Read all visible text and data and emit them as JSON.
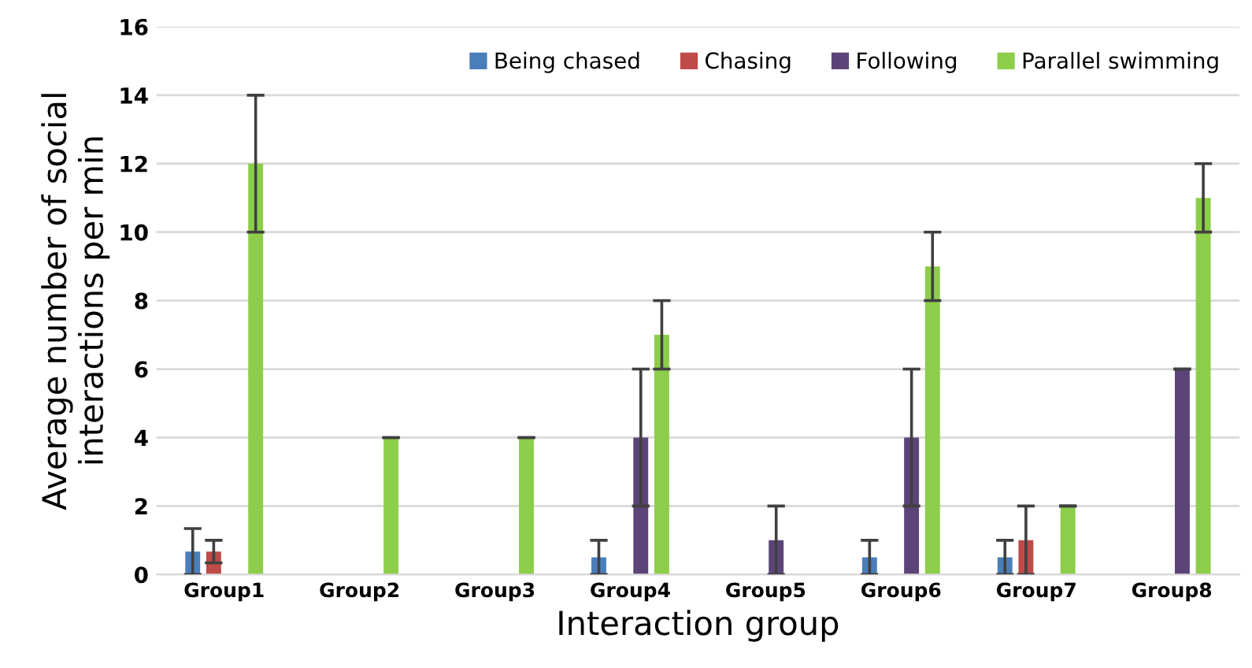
{
  "chart_data": {
    "type": "bar",
    "xlabel": "Interaction group",
    "ylabel": "Average number of social\ninteractions per min",
    "categories": [
      "Group1",
      "Group2",
      "Group3",
      "Group4",
      "Group5",
      "Group6",
      "Group7",
      "Group8"
    ],
    "series": [
      {
        "name": "Being chased",
        "color": "#4a7ebb",
        "values": [
          0.67,
          0,
          0,
          0.5,
          0,
          0.5,
          0.5,
          0
        ],
        "errors": [
          0.67,
          null,
          null,
          0.5,
          null,
          0.5,
          0.5,
          null
        ]
      },
      {
        "name": "Chasing",
        "color": "#be4b48",
        "values": [
          0.67,
          0,
          0,
          0,
          0,
          0,
          1,
          0
        ],
        "errors": [
          0.33,
          null,
          null,
          null,
          null,
          null,
          1,
          null
        ]
      },
      {
        "name": "Following",
        "color": "#5c4478",
        "values": [
          0,
          0,
          0,
          4,
          1,
          4,
          0,
          6
        ],
        "errors": [
          null,
          null,
          null,
          2,
          1,
          2,
          null,
          0
        ]
      },
      {
        "name": "Parallel swimming",
        "color": "#8cce4a",
        "values": [
          12,
          4,
          4,
          7,
          0,
          9,
          2,
          11
        ],
        "errors": [
          2,
          0,
          0,
          1,
          null,
          1,
          0,
          1
        ]
      }
    ],
    "ylim": [
      0,
      16
    ],
    "yticks": [
      0,
      2,
      4,
      6,
      8,
      10,
      12,
      14,
      16
    ],
    "grid": "y",
    "legend": "top right"
  }
}
